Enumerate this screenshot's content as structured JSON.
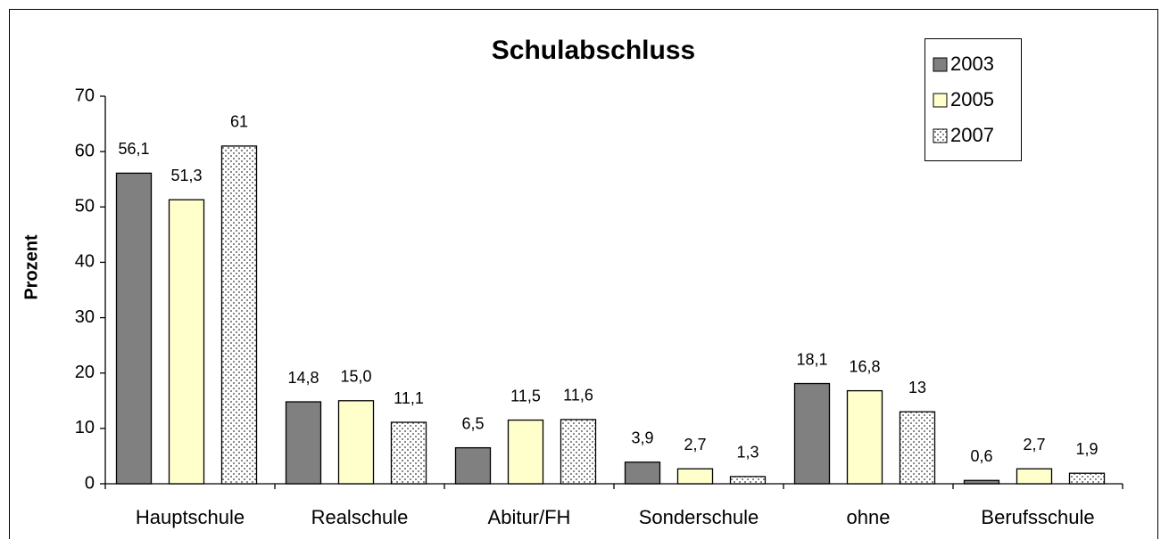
{
  "chart_data": {
    "type": "bar",
    "title": "Schulabschluss",
    "y_label": "Prozent",
    "categories": [
      "Hauptschule",
      "Realschule",
      "Abitur/FH",
      "Sonderschule",
      "ohne",
      "Berufsschule"
    ],
    "series": [
      {
        "name": "2003",
        "color": "#808080",
        "values": [
          56.1,
          14.8,
          6.5,
          3.9,
          18.1,
          0.6
        ],
        "value_labels": [
          "56,1",
          "14,8",
          "6,5",
          "3,9",
          "18,1",
          "0,6"
        ]
      },
      {
        "name": "2005",
        "color": "#ffffcc",
        "values": [
          51.3,
          15.0,
          11.5,
          2.7,
          16.8,
          2.7
        ],
        "value_labels": [
          "51,3",
          "15,0",
          "11,5",
          "2,7",
          "16,8",
          "2,7"
        ]
      },
      {
        "name": "2007",
        "color": "#ffffff",
        "pattern": "dots",
        "values": [
          61,
          11.1,
          11.6,
          1.3,
          13,
          1.9
        ],
        "value_labels": [
          "61",
          "11,1",
          "11,6",
          "1,3",
          "13",
          "1,9"
        ]
      }
    ],
    "ylim": [
      0,
      70
    ],
    "yticks": [
      0,
      10,
      20,
      30,
      40,
      50,
      60,
      70
    ],
    "legend": "top-right"
  }
}
